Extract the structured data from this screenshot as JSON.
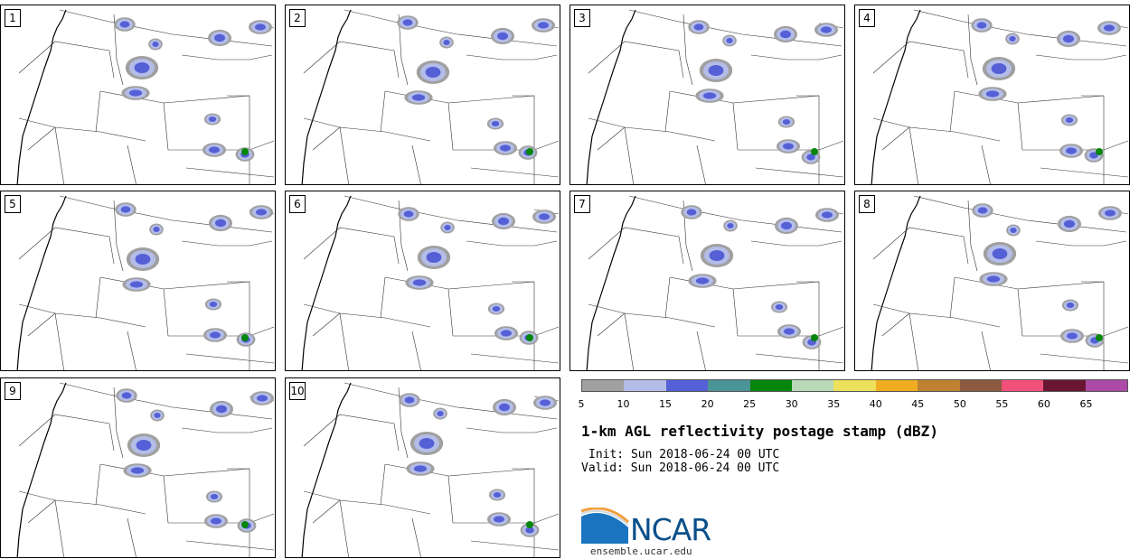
{
  "panels": [
    "1",
    "2",
    "3",
    "4",
    "5",
    "6",
    "7",
    "8",
    "9",
    "10"
  ],
  "colorbar": {
    "ticks": [
      "5",
      "10",
      "15",
      "20",
      "25",
      "30",
      "35",
      "40",
      "45",
      "50",
      "55",
      "60",
      "65"
    ],
    "colors": [
      "#a0a0a0",
      "#b4bde8",
      "#5560d6",
      "#4a9396",
      "#06860a",
      "#b9d9b9",
      "#ece05c",
      "#f1ad22",
      "#bf8233",
      "#8b5a40",
      "#f0507a",
      "#6a1632",
      "#ac4aa8"
    ]
  },
  "title": "1-km AGL reflectivity postage stamp (dBZ)",
  "init": "Init: Sun 2018-06-24 00 UTC",
  "valid": "Valid: Sun 2018-06-24 00 UTC",
  "logo": {
    "text": "NCAR",
    "site": "ensemble.ucar.edu"
  }
}
